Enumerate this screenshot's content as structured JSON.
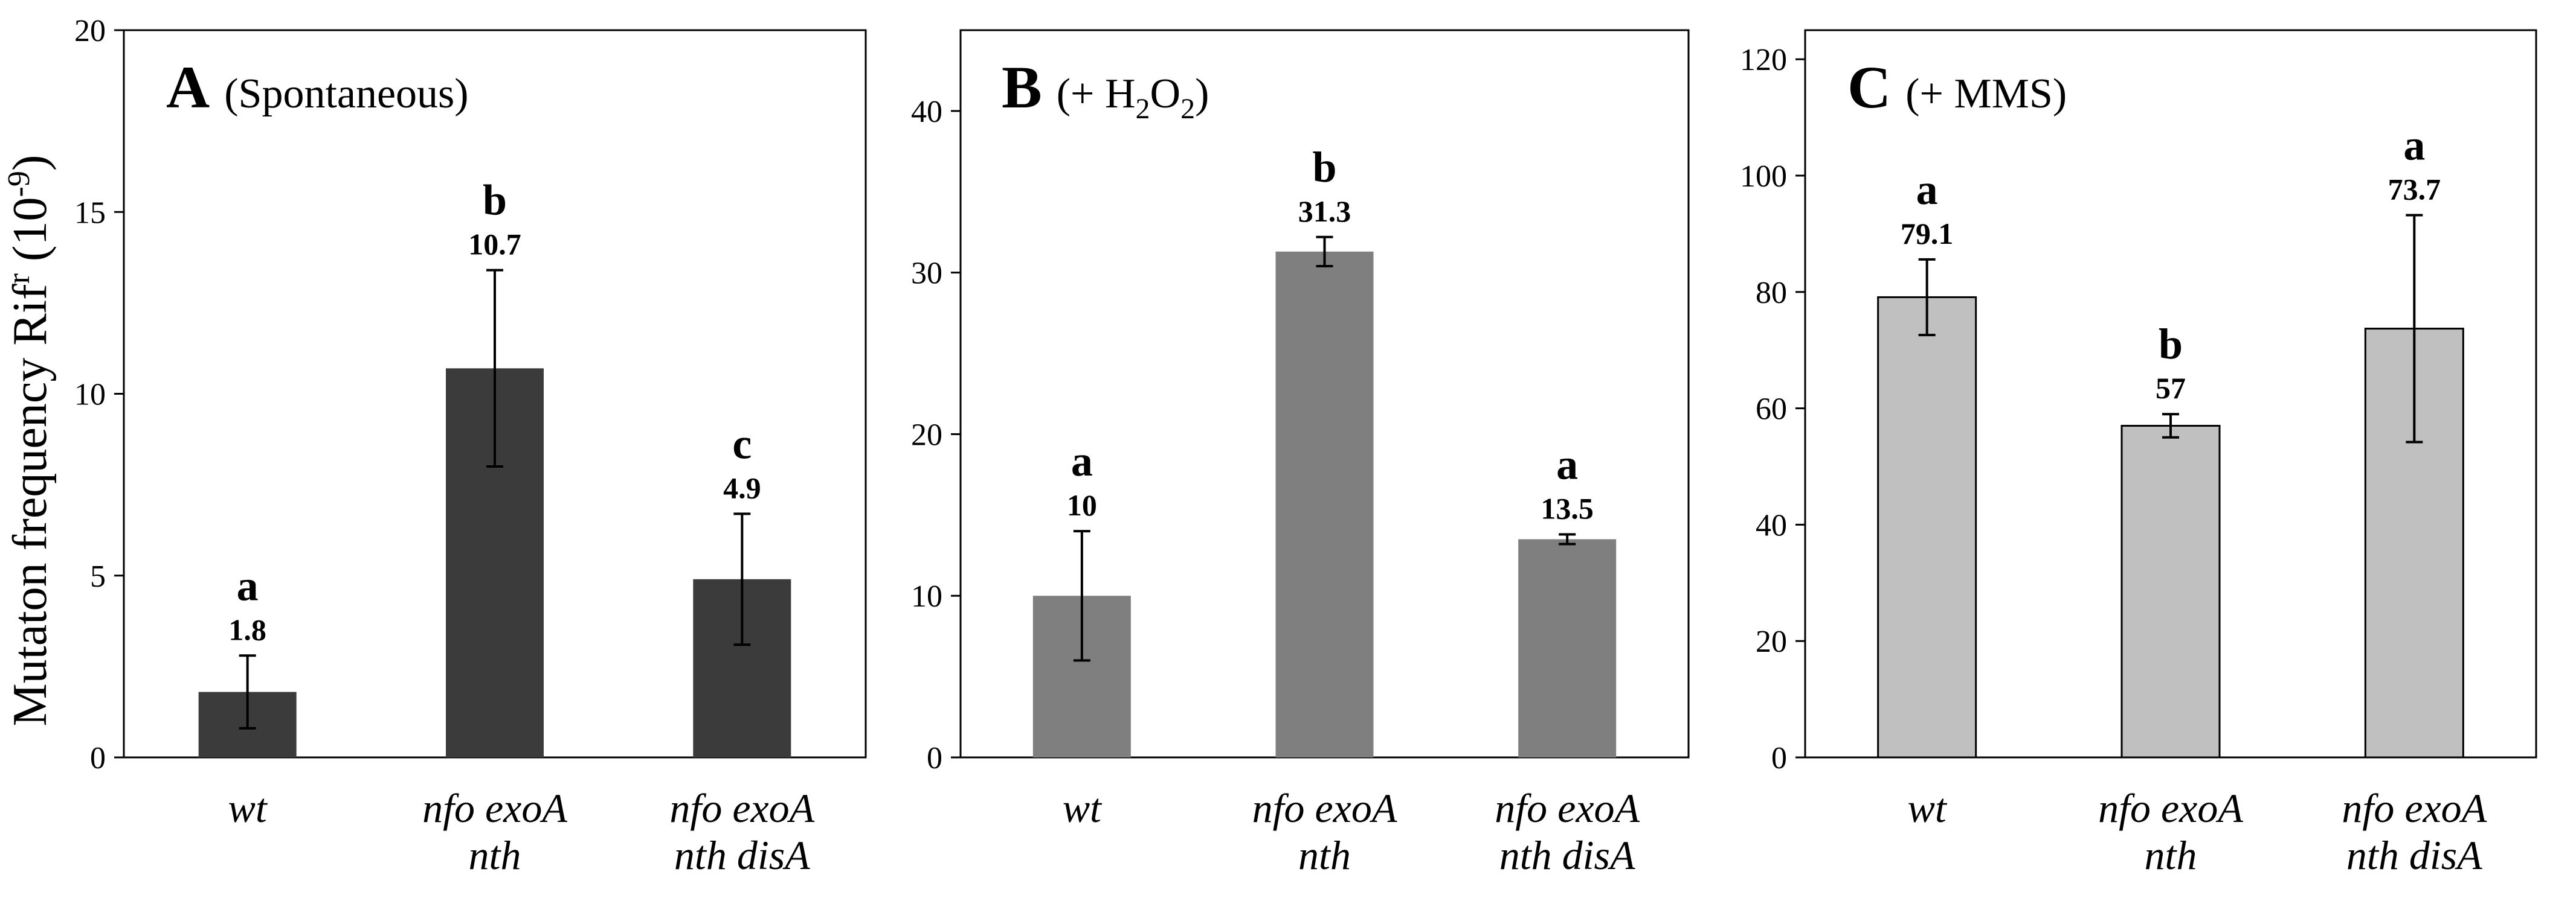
{
  "figure": {
    "ylabel_main": "Mutaton frequency Rif",
    "ylabel_sup": "r",
    "ylabel_unit_open": " (10",
    "ylabel_unit_exp": "-9",
    "ylabel_unit_close": ")"
  },
  "chart_data": [
    {
      "type": "bar",
      "panel_letter": "A",
      "panel_title": "(Spontaneous)",
      "bar_color": "#3b3b3b",
      "categories": [
        [
          "wt"
        ],
        [
          "nfo exoA",
          "nth"
        ],
        [
          "nfo exoA",
          "nth disA"
        ]
      ],
      "values": [
        1.8,
        10.7,
        4.9
      ],
      "value_labels": [
        "1.8",
        "10.7",
        "4.9"
      ],
      "errors": [
        1.0,
        2.7,
        1.8
      ],
      "group_letters": [
        "a",
        "b",
        "c"
      ],
      "ylim": [
        0,
        20
      ],
      "yticks": [
        0,
        5,
        10,
        15,
        20
      ],
      "ytick_labels": [
        "0",
        "5",
        "10",
        "15",
        "20"
      ]
    },
    {
      "type": "bar",
      "panel_letter": "B",
      "panel_title_prefix": "(+ H",
      "panel_title_sub1": "2",
      "panel_title_mid": "O",
      "panel_title_sub2": "2",
      "panel_title_suffix": ")",
      "bar_color": "#7f7f7f",
      "categories": [
        [
          "wt"
        ],
        [
          "nfo exoA",
          "nth"
        ],
        [
          "nfo exoA",
          "nth disA"
        ]
      ],
      "values": [
        10,
        31.3,
        13.5
      ],
      "value_labels": [
        "10",
        "31.3",
        "13.5"
      ],
      "errors": [
        4.0,
        0.9,
        0.3
      ],
      "group_letters": [
        "a",
        "b",
        "a"
      ],
      "ylim": [
        0,
        45
      ],
      "yticks": [
        0,
        10,
        20,
        30,
        40
      ],
      "ytick_labels": [
        "0",
        "10",
        "20",
        "30",
        "40"
      ]
    },
    {
      "type": "bar",
      "panel_letter": "C",
      "panel_title": "(+ MMS)",
      "bar_color": "#c0c0c0",
      "categories": [
        [
          "wt"
        ],
        [
          "nfo exoA",
          "nth"
        ],
        [
          "nfo exoA",
          "nth disA"
        ]
      ],
      "values": [
        79.1,
        57,
        73.7
      ],
      "value_labels": [
        "79.1",
        "57",
        "73.7"
      ],
      "errors": [
        6.5,
        2.0,
        19.5
      ],
      "group_letters": [
        "a",
        "b",
        "a"
      ],
      "ylim": [
        0,
        125
      ],
      "yticks": [
        0,
        20,
        40,
        60,
        80,
        100,
        120
      ],
      "ytick_labels": [
        "0",
        "20",
        "40",
        "60",
        "80",
        "100",
        "120"
      ]
    }
  ]
}
